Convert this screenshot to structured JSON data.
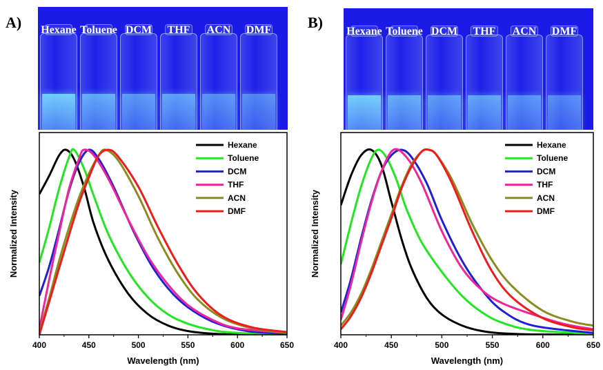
{
  "panels": [
    {
      "letter": "A)",
      "solvent_labels": [
        "Hexane",
        "Toluene",
        "DCM",
        "THF",
        "ACN",
        "DMF"
      ]
    },
    {
      "letter": "B)",
      "solvent_labels": [
        "Hexane",
        "Toluene",
        "DCM",
        "THF",
        "ACN",
        "DMF"
      ]
    }
  ],
  "colors": {
    "Hexane": "#000000",
    "Toluene": "#22e622",
    "DCM": "#1f1fd6",
    "THF": "#f0259a",
    "ACN": "#8b8b1f",
    "DMF": "#ee1c1c",
    "photo_background": "#1b1ae6",
    "fluorescence": "#7fe9ff"
  },
  "chart_data": [
    {
      "type": "line",
      "title": "",
      "xlabel": "Wavelength (nm)",
      "ylabel": "Normalized Intensity",
      "xlim": [
        400,
        650
      ],
      "ylim": [
        0,
        1
      ],
      "xticks": [
        400,
        450,
        500,
        550,
        600,
        650
      ],
      "yticks": [],
      "grid": false,
      "legend": "top-right",
      "series": [
        {
          "name": "Hexane",
          "x": [
            400,
            410,
            420,
            427,
            435,
            445,
            455,
            470,
            490,
            510,
            530,
            550,
            575,
            600,
            650
          ],
          "y": [
            0.76,
            0.86,
            0.97,
            1.0,
            0.95,
            0.8,
            0.6,
            0.4,
            0.22,
            0.11,
            0.05,
            0.02,
            0.006,
            0.002,
            0.0
          ]
        },
        {
          "name": "Toluene",
          "x": [
            400,
            410,
            420,
            430,
            435,
            445,
            455,
            470,
            490,
            510,
            530,
            550,
            575,
            600,
            650
          ],
          "y": [
            0.39,
            0.58,
            0.79,
            0.96,
            1.0,
            0.9,
            0.75,
            0.54,
            0.34,
            0.2,
            0.11,
            0.06,
            0.025,
            0.01,
            0.0
          ]
        },
        {
          "name": "DCM",
          "x": [
            400,
            410,
            420,
            430,
            440,
            450,
            460,
            475,
            495,
            515,
            535,
            555,
            580,
            610,
            650
          ],
          "y": [
            0.21,
            0.37,
            0.57,
            0.78,
            0.93,
            1.0,
            0.95,
            0.8,
            0.56,
            0.36,
            0.22,
            0.13,
            0.06,
            0.02,
            0.005
          ]
        },
        {
          "name": "THF",
          "x": [
            400,
            410,
            420,
            430,
            440,
            445,
            455,
            470,
            490,
            510,
            530,
            550,
            575,
            600,
            650
          ],
          "y": [
            0.03,
            0.3,
            0.55,
            0.79,
            0.95,
            1.0,
            0.97,
            0.84,
            0.62,
            0.42,
            0.27,
            0.16,
            0.08,
            0.035,
            0.01
          ]
        },
        {
          "name": "ACN",
          "x": [
            400,
            410,
            420,
            430,
            440,
            450,
            460,
            467,
            480,
            500,
            520,
            540,
            560,
            585,
            615,
            650
          ],
          "y": [
            0.01,
            0.2,
            0.4,
            0.58,
            0.74,
            0.87,
            0.97,
            1.0,
            0.94,
            0.75,
            0.52,
            0.33,
            0.19,
            0.09,
            0.035,
            0.01
          ]
        },
        {
          "name": "DMF",
          "x": [
            400,
            410,
            420,
            430,
            440,
            450,
            460,
            470,
            480,
            500,
            520,
            540,
            560,
            585,
            615,
            650
          ],
          "y": [
            0.0,
            0.18,
            0.36,
            0.54,
            0.71,
            0.85,
            0.97,
            1.0,
            0.96,
            0.8,
            0.58,
            0.38,
            0.22,
            0.1,
            0.04,
            0.015
          ]
        }
      ]
    },
    {
      "type": "line",
      "title": "",
      "xlabel": "Wavelength (nm)",
      "ylabel": "Normalized Intensity",
      "xlim": [
        400,
        650
      ],
      "ylim": [
        0,
        1
      ],
      "xticks": [
        400,
        450,
        500,
        550,
        600,
        650
      ],
      "yticks": [],
      "grid": false,
      "legend": "top-right",
      "series": [
        {
          "name": "Hexane",
          "x": [
            400,
            410,
            420,
            430,
            440,
            450,
            460,
            470,
            485,
            500,
            520,
            540,
            560,
            590,
            650
          ],
          "y": [
            0.7,
            0.86,
            0.97,
            1.0,
            0.92,
            0.72,
            0.52,
            0.36,
            0.2,
            0.11,
            0.05,
            0.02,
            0.008,
            0.002,
            0.0
          ]
        },
        {
          "name": "Toluene",
          "x": [
            400,
            410,
            420,
            430,
            437,
            445,
            455,
            465,
            480,
            500,
            520,
            540,
            560,
            590,
            650
          ],
          "y": [
            0.38,
            0.6,
            0.8,
            0.95,
            1.0,
            0.96,
            0.84,
            0.68,
            0.5,
            0.34,
            0.21,
            0.12,
            0.065,
            0.025,
            0.005
          ]
        },
        {
          "name": "DCM",
          "x": [
            400,
            410,
            420,
            430,
            440,
            450,
            460,
            470,
            485,
            500,
            520,
            540,
            560,
            590,
            650
          ],
          "y": [
            0.12,
            0.3,
            0.52,
            0.72,
            0.88,
            0.97,
            1.0,
            0.96,
            0.82,
            0.62,
            0.4,
            0.24,
            0.13,
            0.05,
            0.01
          ]
        },
        {
          "name": "THF",
          "x": [
            400,
            410,
            420,
            430,
            440,
            452,
            465,
            480,
            500,
            520,
            540,
            560,
            590,
            620,
            650
          ],
          "y": [
            0.08,
            0.27,
            0.5,
            0.71,
            0.88,
            1.0,
            0.96,
            0.82,
            0.56,
            0.36,
            0.24,
            0.17,
            0.11,
            0.06,
            0.03
          ]
        },
        {
          "name": "ACN",
          "x": [
            400,
            410,
            420,
            430,
            440,
            450,
            460,
            470,
            480,
            487,
            495,
            510,
            530,
            550,
            570,
            600,
            630,
            650
          ],
          "y": [
            0.05,
            0.12,
            0.22,
            0.35,
            0.5,
            0.65,
            0.8,
            0.92,
            0.99,
            1.0,
            0.97,
            0.84,
            0.6,
            0.4,
            0.26,
            0.13,
            0.07,
            0.05
          ]
        },
        {
          "name": "DMF",
          "x": [
            400,
            410,
            420,
            430,
            440,
            450,
            460,
            470,
            480,
            487,
            495,
            510,
            530,
            550,
            570,
            600,
            630,
            650
          ],
          "y": [
            0.03,
            0.1,
            0.2,
            0.33,
            0.48,
            0.63,
            0.79,
            0.91,
            0.99,
            1.0,
            0.97,
            0.82,
            0.56,
            0.34,
            0.2,
            0.09,
            0.04,
            0.025
          ]
        }
      ]
    }
  ]
}
